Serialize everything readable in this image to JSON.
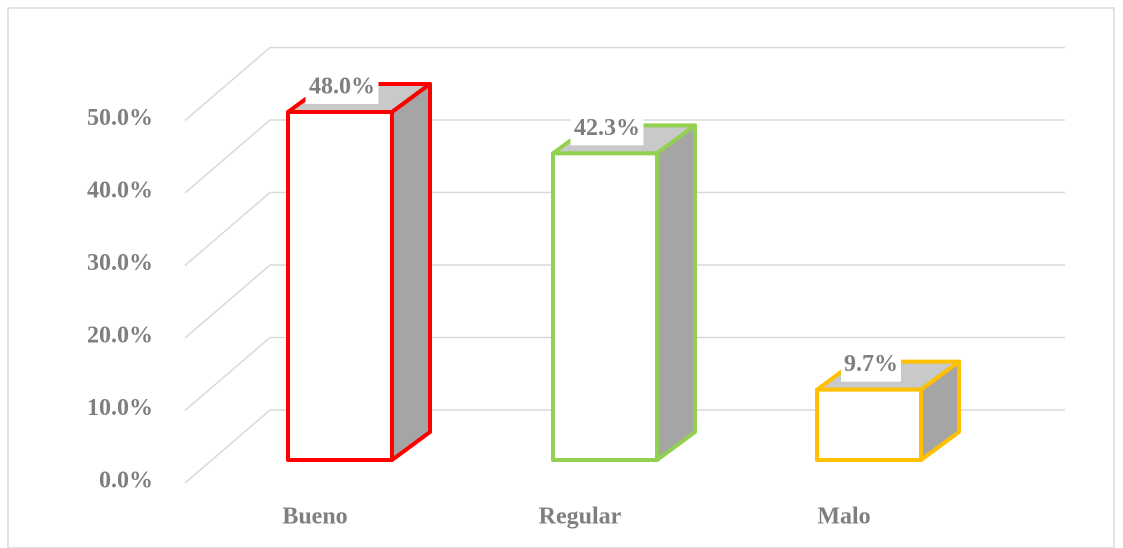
{
  "chart_data": {
    "type": "bar3d",
    "categories": [
      "Bueno",
      "Regular",
      "Malo"
    ],
    "values": [
      48.0,
      42.3,
      9.7
    ],
    "value_labels": [
      "48.0%",
      "42.3%",
      "9.7%"
    ],
    "colors": [
      "#ff0000",
      "#92d050",
      "#ffc000"
    ],
    "ylim": [
      0,
      50
    ],
    "yticks": [
      {
        "value": 0,
        "label": "0.0%"
      },
      {
        "value": 10,
        "label": "10.0%"
      },
      {
        "value": 20,
        "label": "20.0%"
      },
      {
        "value": 30,
        "label": "30.0%"
      },
      {
        "value": 40,
        "label": "40.0%"
      },
      {
        "value": 50,
        "label": "50.0%"
      }
    ],
    "grid": true
  }
}
